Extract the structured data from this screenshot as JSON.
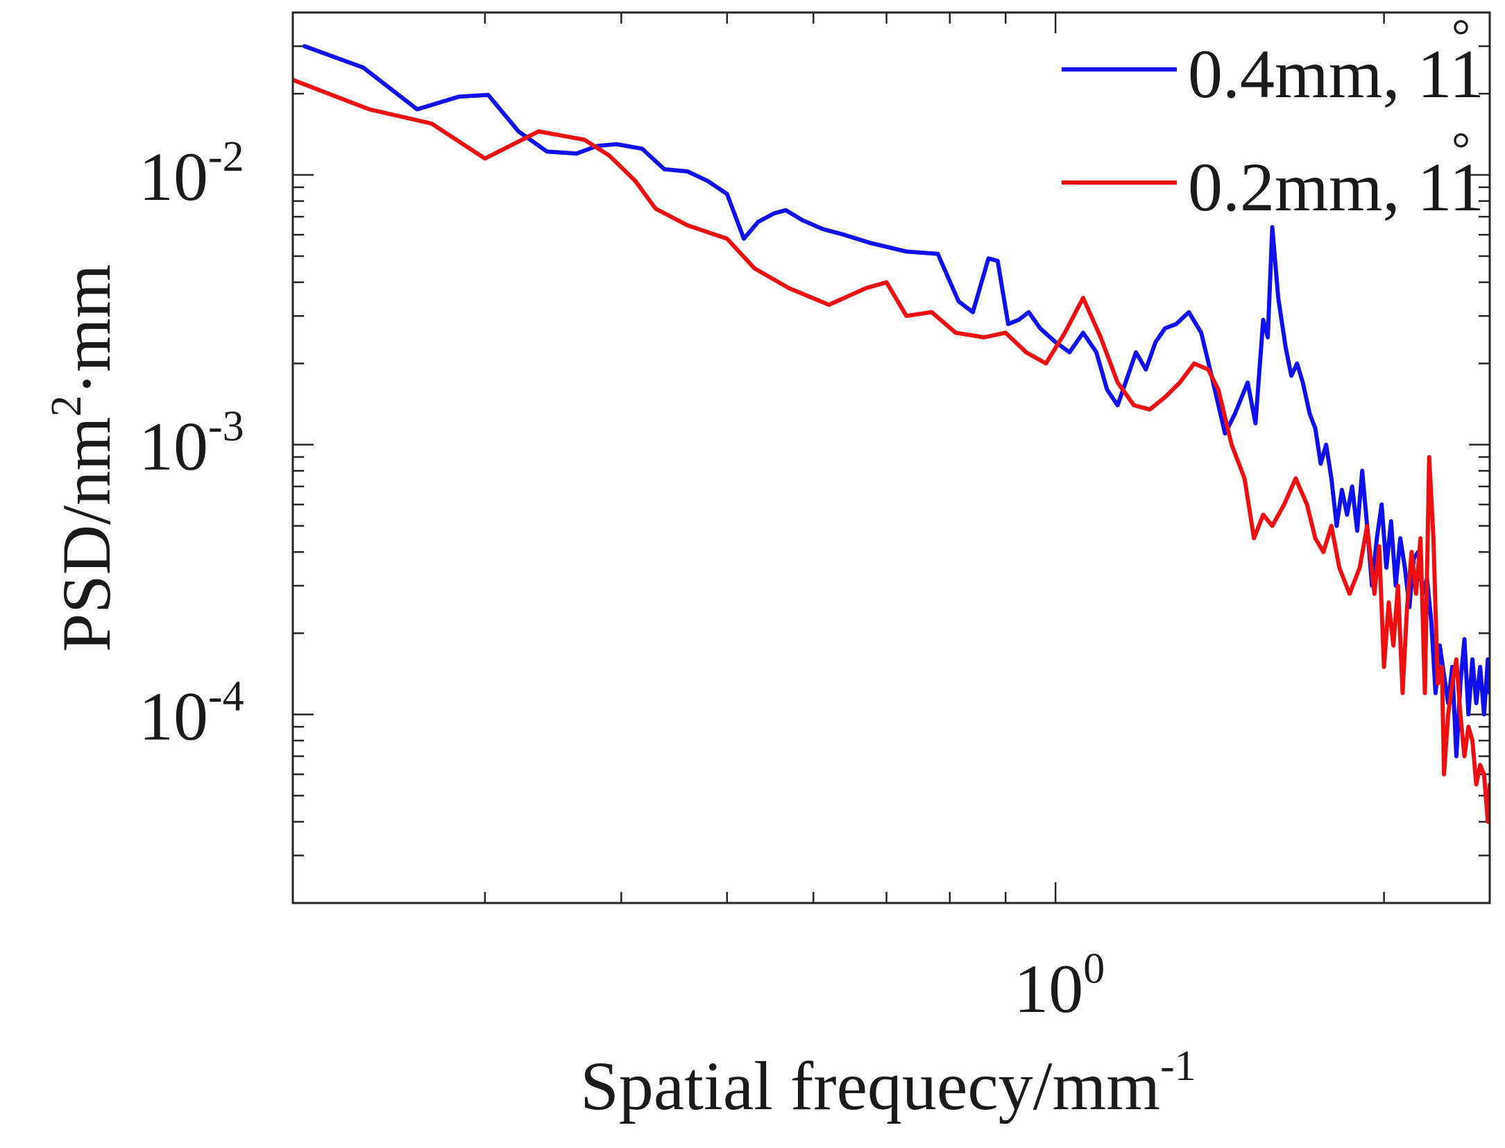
{
  "chart_data": {
    "type": "line",
    "xscale": "log",
    "yscale": "log",
    "xlim": [
      0.2,
      2.5
    ],
    "ylim": [
      2e-05,
      0.04
    ],
    "xlabel": {
      "base": "Spatial frequecy/mm",
      "sup": "-1"
    },
    "ylabel": {
      "base": "PSD/nm",
      "sup": "2",
      "tail": "·mm"
    },
    "xticks": [
      {
        "value": 1,
        "base": "10",
        "exp": "0"
      }
    ],
    "yticks": [
      {
        "value": 0.01,
        "base": "10",
        "exp": "-2"
      },
      {
        "value": 0.001,
        "base": "10",
        "exp": "-3"
      },
      {
        "value": 0.0001,
        "base": "10",
        "exp": "-4"
      }
    ],
    "legend": {
      "position": "top-right"
    },
    "series": [
      {
        "name": "0.4mm, 11",
        "degree": "°",
        "color": "#1010ee",
        "points": [
          [
            0.205,
            0.03
          ],
          [
            0.232,
            0.025
          ],
          [
            0.26,
            0.0175
          ],
          [
            0.284,
            0.0195
          ],
          [
            0.302,
            0.0198
          ],
          [
            0.322,
            0.0145
          ],
          [
            0.342,
            0.0122
          ],
          [
            0.364,
            0.012
          ],
          [
            0.38,
            0.0128
          ],
          [
            0.396,
            0.013
          ],
          [
            0.418,
            0.0125
          ],
          [
            0.438,
            0.0105
          ],
          [
            0.46,
            0.0103
          ],
          [
            0.48,
            0.0095
          ],
          [
            0.5,
            0.0085
          ],
          [
            0.518,
            0.0058
          ],
          [
            0.534,
            0.0067
          ],
          [
            0.552,
            0.0072
          ],
          [
            0.566,
            0.0074
          ],
          [
            0.586,
            0.0068
          ],
          [
            0.612,
            0.0063
          ],
          [
            0.64,
            0.006
          ],
          [
            0.676,
            0.0056
          ],
          [
            0.73,
            0.0052
          ],
          [
            0.78,
            0.0051
          ],
          [
            0.815,
            0.0034
          ],
          [
            0.84,
            0.0031
          ],
          [
            0.868,
            0.0049
          ],
          [
            0.885,
            0.0048
          ],
          [
            0.905,
            0.0028
          ],
          [
            0.925,
            0.0029
          ],
          [
            0.945,
            0.0031
          ],
          [
            0.968,
            0.0027
          ],
          [
            1.0,
            0.0024
          ],
          [
            1.03,
            0.0022
          ],
          [
            1.06,
            0.0026
          ],
          [
            1.09,
            0.0022
          ],
          [
            1.115,
            0.0016
          ],
          [
            1.14,
            0.0014
          ],
          [
            1.165,
            0.0018
          ],
          [
            1.185,
            0.0022
          ],
          [
            1.21,
            0.0019
          ],
          [
            1.235,
            0.0024
          ],
          [
            1.26,
            0.0027
          ],
          [
            1.29,
            0.0028
          ],
          [
            1.325,
            0.0031
          ],
          [
            1.36,
            0.0026
          ],
          [
            1.39,
            0.0018
          ],
          [
            1.43,
            0.0011
          ],
          [
            1.46,
            0.0013
          ],
          [
            1.5,
            0.0017
          ],
          [
            1.525,
            0.0012
          ],
          [
            1.55,
            0.0029
          ],
          [
            1.565,
            0.0025
          ],
          [
            1.58,
            0.0064
          ],
          [
            1.6,
            0.0035
          ],
          [
            1.625,
            0.0023
          ],
          [
            1.645,
            0.0018
          ],
          [
            1.665,
            0.002
          ],
          [
            1.685,
            0.0017
          ],
          [
            1.71,
            0.0013
          ],
          [
            1.73,
            0.00115
          ],
          [
            1.75,
            0.00085
          ],
          [
            1.77,
            0.001
          ],
          [
            1.79,
            0.00075
          ],
          [
            1.81,
            0.0005
          ],
          [
            1.83,
            0.00068
          ],
          [
            1.85,
            0.00055
          ],
          [
            1.87,
            0.0007
          ],
          [
            1.89,
            0.00048
          ],
          [
            1.91,
            0.0008
          ],
          [
            1.93,
            0.0005
          ],
          [
            1.95,
            0.0003
          ],
          [
            1.97,
            0.00045
          ],
          [
            1.99,
            0.0006
          ],
          [
            2.01,
            0.00035
          ],
          [
            2.03,
            0.00052
          ],
          [
            2.05,
            0.0003
          ],
          [
            2.07,
            0.00045
          ],
          [
            2.09,
            0.00035
          ],
          [
            2.11,
            0.00025
          ],
          [
            2.13,
            0.00038
          ],
          [
            2.15,
            0.0004
          ],
          [
            2.17,
            0.00028
          ],
          [
            2.19,
            0.00032
          ],
          [
            2.21,
            0.00022
          ],
          [
            2.23,
            0.00012
          ],
          [
            2.25,
            0.00018
          ],
          [
            2.27,
            0.00014
          ],
          [
            2.29,
            0.00011
          ],
          [
            2.31,
            0.00015
          ],
          [
            2.33,
            7e-05
          ],
          [
            2.35,
            0.00013
          ],
          [
            2.37,
            0.00019
          ],
          [
            2.39,
            0.0001
          ],
          [
            2.41,
            0.00016
          ],
          [
            2.43,
            0.00011
          ],
          [
            2.45,
            0.00015
          ],
          [
            2.47,
            0.0001
          ],
          [
            2.49,
            0.00016
          ],
          [
            2.5,
            0.00012
          ]
        ]
      },
      {
        "name": "0.2mm, 11",
        "degree": "°",
        "color": "#ee1010",
        "points": [
          [
            0.2,
            0.0225
          ],
          [
            0.235,
            0.0175
          ],
          [
            0.268,
            0.0155
          ],
          [
            0.3,
            0.0115
          ],
          [
            0.336,
            0.0145
          ],
          [
            0.37,
            0.0135
          ],
          [
            0.39,
            0.0118
          ],
          [
            0.412,
            0.0095
          ],
          [
            0.43,
            0.0075
          ],
          [
            0.46,
            0.0065
          ],
          [
            0.5,
            0.0058
          ],
          [
            0.53,
            0.0045
          ],
          [
            0.57,
            0.0038
          ],
          [
            0.62,
            0.0033
          ],
          [
            0.67,
            0.0038
          ],
          [
            0.7,
            0.004
          ],
          [
            0.73,
            0.003
          ],
          [
            0.77,
            0.0031
          ],
          [
            0.81,
            0.0026
          ],
          [
            0.86,
            0.0025
          ],
          [
            0.9,
            0.0026
          ],
          [
            0.94,
            0.0022
          ],
          [
            0.98,
            0.002
          ],
          [
            1.02,
            0.0026
          ],
          [
            1.06,
            0.0035
          ],
          [
            1.1,
            0.0025
          ],
          [
            1.14,
            0.0017
          ],
          [
            1.18,
            0.0014
          ],
          [
            1.22,
            0.00135
          ],
          [
            1.26,
            0.0015
          ],
          [
            1.3,
            0.0017
          ],
          [
            1.34,
            0.002
          ],
          [
            1.38,
            0.0019
          ],
          [
            1.41,
            0.0016
          ],
          [
            1.45,
            0.001
          ],
          [
            1.49,
            0.00075
          ],
          [
            1.52,
            0.00045
          ],
          [
            1.55,
            0.00055
          ],
          [
            1.58,
            0.0005
          ],
          [
            1.62,
            0.0006
          ],
          [
            1.66,
            0.00075
          ],
          [
            1.7,
            0.0006
          ],
          [
            1.73,
            0.00045
          ],
          [
            1.76,
            0.0004
          ],
          [
            1.79,
            0.0005
          ],
          [
            1.82,
            0.00035
          ],
          [
            1.86,
            0.00028
          ],
          [
            1.9,
            0.00035
          ],
          [
            1.93,
            0.0005
          ],
          [
            1.96,
            0.00028
          ],
          [
            1.98,
            0.00042
          ],
          [
            2.0,
            0.00015
          ],
          [
            2.02,
            0.00026
          ],
          [
            2.04,
            0.00018
          ],
          [
            2.06,
            0.0003
          ],
          [
            2.08,
            0.00012
          ],
          [
            2.1,
            0.00025
          ],
          [
            2.12,
            0.0004
          ],
          [
            2.14,
            0.00028
          ],
          [
            2.16,
            0.00045
          ],
          [
            2.18,
            0.00012
          ],
          [
            2.2,
            0.0009
          ],
          [
            2.22,
            0.00045
          ],
          [
            2.24,
            0.00013
          ],
          [
            2.26,
            0.00015
          ],
          [
            2.27,
            6e-05
          ],
          [
            2.29,
            0.0001
          ],
          [
            2.31,
            0.00013
          ],
          [
            2.33,
            0.00016
          ],
          [
            2.35,
            0.0001
          ],
          [
            2.37,
            7e-05
          ],
          [
            2.39,
            9e-05
          ],
          [
            2.41,
            8e-05
          ],
          [
            2.43,
            5.5e-05
          ],
          [
            2.45,
            6.5e-05
          ],
          [
            2.47,
            6e-05
          ],
          [
            2.49,
            4e-05
          ],
          [
            2.5,
            5.5e-05
          ]
        ]
      }
    ]
  }
}
